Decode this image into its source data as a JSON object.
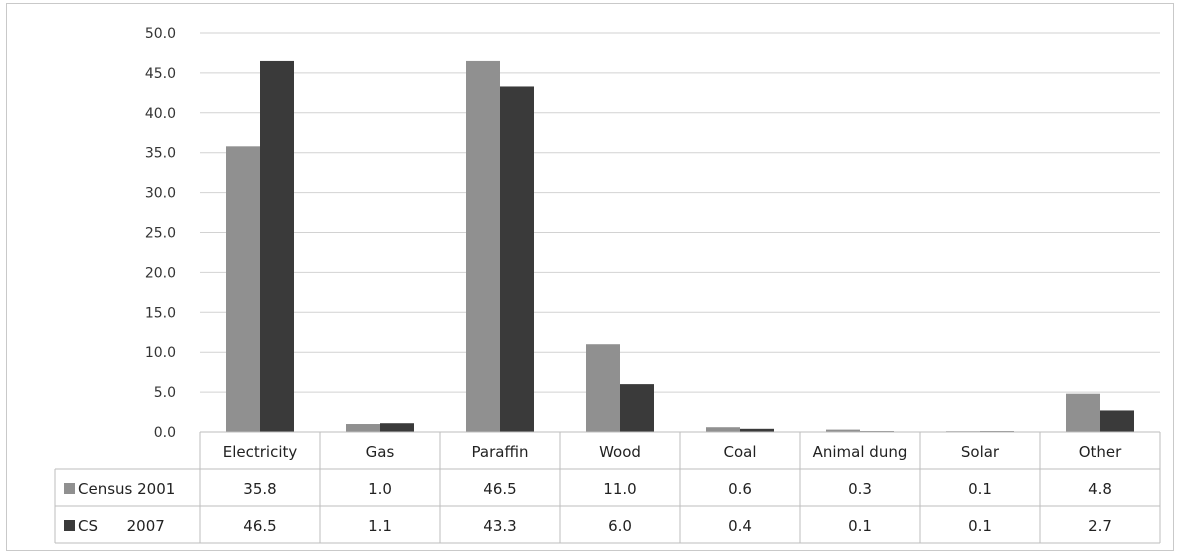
{
  "chart_data": {
    "type": "bar",
    "categories": [
      "Electricity",
      "Gas",
      "Paraffin",
      "Wood",
      "Coal",
      "Animal dung",
      "Solar",
      "Other"
    ],
    "series": [
      {
        "name": "Census 2001",
        "values": [
          35.8,
          1.0,
          46.5,
          11.0,
          0.6,
          0.3,
          0.1,
          4.8
        ],
        "color": "#909090"
      },
      {
        "name": "CS      2007",
        "values": [
          46.5,
          1.1,
          43.3,
          6.0,
          0.4,
          0.1,
          0.1,
          2.7
        ],
        "color": "#3a3a3a"
      }
    ],
    "ylim": [
      0,
      50
    ],
    "yticks": [
      "0.0",
      "5.0",
      "10.0",
      "15.0",
      "20.0",
      "25.0",
      "30.0",
      "35.0",
      "40.0",
      "45.0",
      "50.0"
    ],
    "grid": true,
    "data_table": true,
    "title": "",
    "xlabel": "",
    "ylabel": ""
  }
}
